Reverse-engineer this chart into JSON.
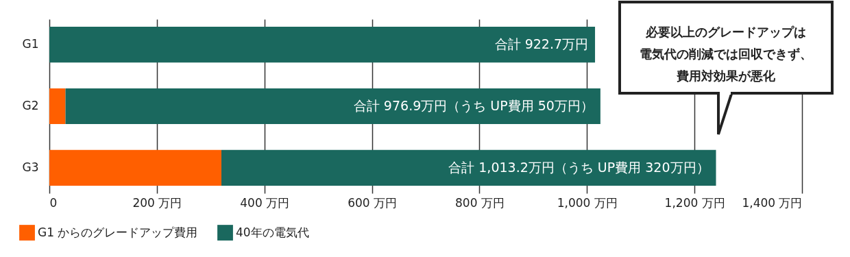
{
  "chart_data": {
    "type": "bar",
    "orientation": "horizontal",
    "stacked": true,
    "categories": [
      "G1",
      "G2",
      "G3"
    ],
    "series": [
      {
        "name": "G1 からのグレードアップ費用",
        "color": "#ff5f00",
        "values": [
          0,
          30,
          320
        ]
      },
      {
        "name": "40年の電気代",
        "color": "#1a685e",
        "values": [
          1015,
          995,
          920
        ]
      }
    ],
    "xlim": [
      0,
      1400
    ],
    "xticks": [
      0,
      {
        "value": 200,
        "label": "200 万円"
      },
      {
        "value": 400,
        "label": "400 万円"
      },
      {
        "value": 600,
        "label": "600 万円"
      },
      {
        "value": 800,
        "label": "800 万円"
      },
      {
        "value": 1000,
        "label": "1,000 万円"
      },
      {
        "value": 1200,
        "label": "1,200 万円"
      },
      {
        "value": 1400,
        "label": "1,400 万円"
      }
    ],
    "grid": "x",
    "legend": "bottom left",
    "annotations": [
      {
        "text": "合計 922.7万円",
        "x": 1015,
        "y": "G1"
      },
      {
        "text": "合計 976.9万円（うち UP費用 50万円）",
        "x": 1025,
        "y": "G2"
      },
      {
        "text": "合計 1,013.2万円（うち UP費用 320万円）",
        "x": 1240,
        "y": "G3"
      },
      "必要以上のグレードアップは",
      "電気代の削減では回収できず、",
      "費用対効果が悪化"
    ]
  }
}
